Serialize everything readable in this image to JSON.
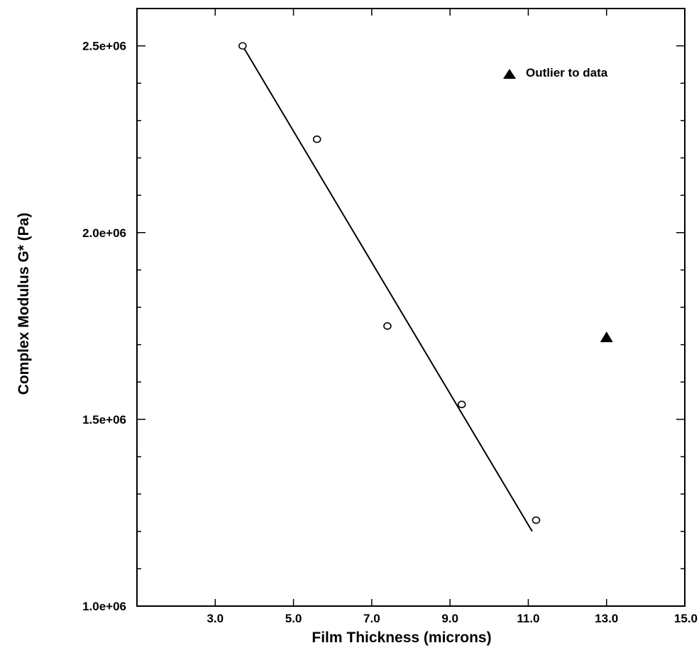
{
  "chart_data": {
    "type": "scatter",
    "xlabel": "Film Thickness (microns)",
    "ylabel": "Complex Modulus G* (Pa)",
    "xlim": [
      1.0,
      15.0
    ],
    "ylim": [
      1000000,
      2600000
    ],
    "x_ticks": [
      {
        "value": 3.0,
        "label": "3.0"
      },
      {
        "value": 5.0,
        "label": "5.0"
      },
      {
        "value": 7.0,
        "label": "7.0"
      },
      {
        "value": 9.0,
        "label": "9.0"
      },
      {
        "value": 11.0,
        "label": "11.0"
      },
      {
        "value": 13.0,
        "label": "13.0"
      },
      {
        "value": 15.0,
        "label": "15.0"
      }
    ],
    "y_ticks": [
      {
        "value": 1000000,
        "label": "1.0e+06"
      },
      {
        "value": 1500000,
        "label": "1.5e+06"
      },
      {
        "value": 2000000,
        "label": "2.0e+06"
      },
      {
        "value": 2500000,
        "label": "2.5e+06"
      }
    ],
    "y_minor_step": 100000,
    "grid": false,
    "series": [
      {
        "marker": "open-circle",
        "points": [
          {
            "x": 3.7,
            "y": 2500000
          },
          {
            "x": 5.6,
            "y": 2250000
          },
          {
            "x": 7.4,
            "y": 1750000
          },
          {
            "x": 9.3,
            "y": 1540000
          },
          {
            "x": 11.2,
            "y": 1230000
          }
        ]
      },
      {
        "name": "Outlier to data",
        "marker": "filled-triangle",
        "points": [
          {
            "x": 13.0,
            "y": 1720000
          }
        ]
      }
    ],
    "fit_line": {
      "x1": 3.7,
      "y1": 2500000,
      "x2": 11.1,
      "y2": 1200000
    },
    "legend_position": "top-right"
  }
}
